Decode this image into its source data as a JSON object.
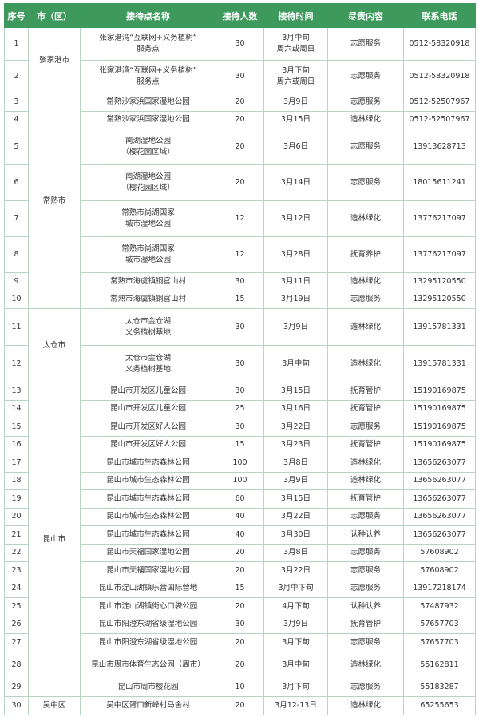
{
  "headers": [
    "序号",
    "市（区）",
    "接待点名称",
    "接待人数",
    "接待时间",
    "尽责内容",
    "联系电话"
  ],
  "groups": [
    {
      "city": "张家港市",
      "rows": [
        {
          "no": "1",
          "name": "张家港湾“互联网+义务植树”\n服务点",
          "count": "30",
          "time": "3月中旬\n周六或周日",
          "task": "志愿服务",
          "phone": "0512-58320918"
        },
        {
          "no": "2",
          "name": "张家港湾“互联网+义务植树”\n服务点",
          "count": "30",
          "time": "3月下旬\n周六或周日",
          "task": "志愿服务",
          "phone": "0512-58320918"
        }
      ]
    },
    {
      "city": "常熟市",
      "rows": [
        {
          "no": "3",
          "name": "常熟沙家浜国家湿地公园",
          "count": "20",
          "time": "3月9日",
          "task": "志愿服务",
          "phone": "0512-52507967"
        },
        {
          "no": "4",
          "name": "常熟沙家浜国家湿地公园",
          "count": "20",
          "time": "3月15日",
          "task": "造林绿化",
          "phone": "0512-52507967"
        },
        {
          "no": "5",
          "name": "南湖湿地公园\n（樱花园区域）",
          "count": "20",
          "time": "3月6日",
          "task": "志愿服务",
          "phone": "13913628713"
        },
        {
          "no": "6",
          "name": "南湖湿地公园\n（樱花园区域）",
          "count": "20",
          "time": "3月14日",
          "task": "志愿服务",
          "phone": "18015611241"
        },
        {
          "no": "7",
          "name": "常熟市尚湖国家\n城市湿地公园",
          "count": "12",
          "time": "3月12日",
          "task": "造林绿化",
          "phone": "13776217097"
        },
        {
          "no": "8",
          "name": "常熟市尚湖国家\n城市湿地公园",
          "count": "12",
          "time": "3月28日",
          "task": "抚育养护",
          "phone": "13776217097"
        },
        {
          "no": "9",
          "name": "常熟市海虞镇铜官山村",
          "count": "30",
          "time": "3月11日",
          "task": "造林绿化",
          "phone": "13295120550"
        },
        {
          "no": "10",
          "name": "常熟市海虞镇铜官山村",
          "count": "15",
          "time": "3月19日",
          "task": "志愿服务",
          "phone": "13295120550"
        }
      ]
    },
    {
      "city": "太仓市",
      "rows": [
        {
          "no": "11",
          "name": "太仓市金仓湖\n义务植树基地",
          "count": "30",
          "time": "3月9日",
          "task": "造林绿化",
          "phone": "13915781331"
        },
        {
          "no": "12",
          "name": "太仓市金仓湖\n义务植树基地",
          "count": "30",
          "time": "3月中旬",
          "task": "造林绿化",
          "phone": "13915781331"
        }
      ]
    },
    {
      "city": "昆山市",
      "rows": [
        {
          "no": "13",
          "name": "昆山市开发区儿童公园",
          "count": "30",
          "time": "3月15日",
          "task": "抚育管护",
          "phone": "15190169875"
        },
        {
          "no": "14",
          "name": "昆山市开发区儿童公园",
          "count": "25",
          "time": "3月16日",
          "task": "抚育管护",
          "phone": "15190169875"
        },
        {
          "no": "15",
          "name": "昆山市开发区好人公园",
          "count": "30",
          "time": "3月22日",
          "task": "志愿服务",
          "phone": "15190169875"
        },
        {
          "no": "16",
          "name": "昆山市开发区好人公园",
          "count": "15",
          "time": "3月23日",
          "task": "抚育管护",
          "phone": "15190169875"
        },
        {
          "no": "17",
          "name": "昆山市城市生态森林公园",
          "count": "100",
          "time": "3月8日",
          "task": "造林绿化",
          "phone": "13656263077"
        },
        {
          "no": "18",
          "name": "昆山市城市生态森林公园",
          "count": "100",
          "time": "3月9日",
          "task": "造林绿化",
          "phone": "13656263077"
        },
        {
          "no": "19",
          "name": "昆山市城市生态森林公园",
          "count": "60",
          "time": "3月15日",
          "task": "抚育管护",
          "phone": "13656263077"
        },
        {
          "no": "20",
          "name": "昆山市城市生态森林公园",
          "count": "40",
          "time": "3月22日",
          "task": "志愿服务",
          "phone": "13656263077"
        },
        {
          "no": "21",
          "name": "昆山市城市生态森林公园",
          "count": "40",
          "time": "3月30日",
          "task": "认种认养",
          "phone": "13656263077"
        },
        {
          "no": "22",
          "name": "昆山市天福国家湿地公园",
          "count": "20",
          "time": "3月8日",
          "task": "志愿服务",
          "phone": "57608902"
        },
        {
          "no": "23",
          "name": "昆山市天福国家湿地公园",
          "count": "20",
          "time": "3月22日",
          "task": "志愿服务",
          "phone": "57608902"
        },
        {
          "no": "24",
          "name": "昆山市淀山湖镇乐营国际营地",
          "count": "15",
          "time": "3月中下旬",
          "task": "志愿服务",
          "phone": "13917218174"
        },
        {
          "no": "25",
          "name": "昆山市淀山湖镇街心口袋公园",
          "count": "20",
          "time": "4月下旬",
          "task": "认种认养",
          "phone": "57487932"
        },
        {
          "no": "26",
          "name": "昆山市阳澄东湖省级湿地公园",
          "count": "30",
          "time": "3月9日",
          "task": "抚育管护",
          "phone": "57657703"
        },
        {
          "no": "27",
          "name": "昆山市阳澄东湖省级湿地公园",
          "count": "20",
          "time": "3月下旬",
          "task": "志愿服务",
          "phone": "57657703"
        },
        {
          "no": "28",
          "name": "昆山市周市体育生态公园（周市）",
          "count": "20",
          "time": "3月中旬",
          "task": "造林绿化",
          "phone": "55162811"
        },
        {
          "no": "29",
          "name": "昆山市周市樱花园",
          "count": "10",
          "time": "3月下旬",
          "task": "志愿服务",
          "phone": "55183287"
        }
      ]
    },
    {
      "city": "吴中区",
      "rows": [
        {
          "no": "30",
          "name": "吴中区胥口新峰村马舍村",
          "count": "20",
          "time": "3月12-13日",
          "task": "造林绿化",
          "phone": "65255653"
        }
      ]
    }
  ]
}
